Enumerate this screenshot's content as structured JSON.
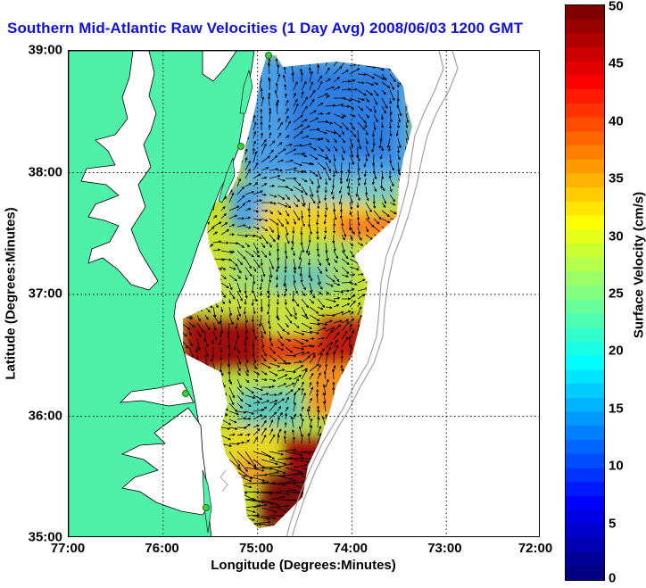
{
  "title": "Southern Mid-Atlantic Raw Velocities (1 Day Avg) 2008/06/03 1200 GMT",
  "x_axis": {
    "label": "Longitude (Degrees:Minutes)",
    "ticks": [
      "77:00",
      "76:00",
      "75:00",
      "74:00",
      "73:00",
      "72:00"
    ]
  },
  "y_axis": {
    "label": "Latitude (Degrees:Minutes)",
    "ticks": [
      "39:00",
      "38:00",
      "37:00",
      "36:00",
      "35:00"
    ]
  },
  "colorbar": {
    "label": "Surface Velocity (cm/s)",
    "ticks": [
      "50",
      "45",
      "40",
      "35",
      "30",
      "25",
      "20",
      "15",
      "10",
      "5",
      "0"
    ],
    "range": [
      0,
      50
    ],
    "colormap": "jet"
  },
  "map": {
    "lon_range": [
      -77,
      -72
    ],
    "lat_range": [
      35,
      39
    ],
    "land_color": "#4ff0a8",
    "water_color": "#ffffff",
    "bathymetry_color": "#9a9a9a",
    "grid": "dotted"
  }
}
